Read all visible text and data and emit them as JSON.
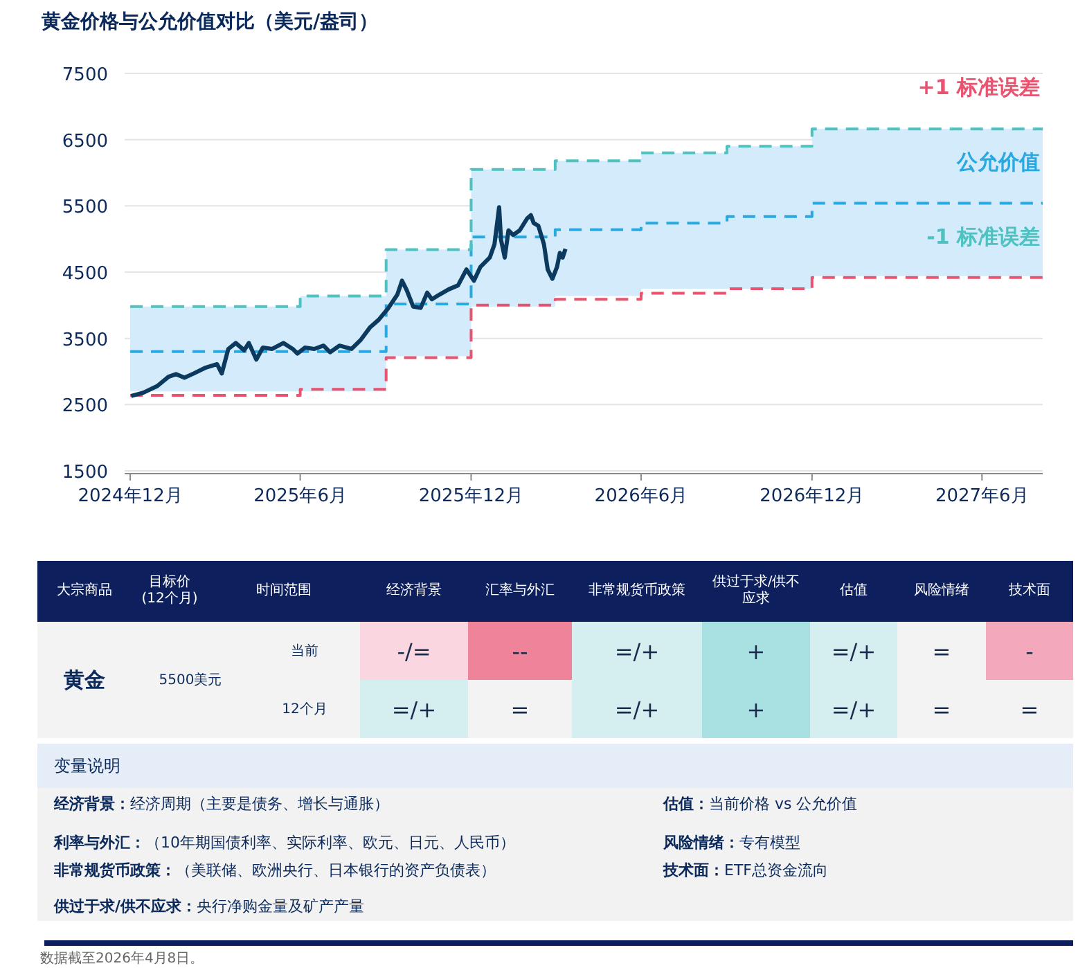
{
  "chart_data": [
    {
      "type": "line",
      "title": "黄金价格与公允价值对比（美元/盎司）",
      "xlim": [
        "2024-11-25",
        "2027-08-05"
      ],
      "ylim": [
        1500,
        7500
      ],
      "yticks": [
        1500,
        2500,
        3500,
        4500,
        5500,
        6500,
        7500
      ],
      "xticks": [
        {
          "value": "2024-12-01",
          "label": "2024年12月"
        },
        {
          "value": "2025-06-01",
          "label": "2025年6月"
        },
        {
          "value": "2025-12-01",
          "label": "2025年12月"
        },
        {
          "value": "2026-06-01",
          "label": "2026年6月"
        },
        {
          "value": "2026-12-01",
          "label": "2026年12月"
        },
        {
          "value": "2027-06-01",
          "label": "2027年6月"
        }
      ],
      "grid": "y",
      "marker": "none",
      "series": [
        {
          "type": "line",
          "color": "#0b3a5e",
          "line_style": "solid",
          "x": [
            "2024-12-02",
            "2024-12-15",
            "2024-12-30",
            "2025-01-11",
            "2025-01-19",
            "2025-01-28",
            "2025-02-07",
            "2025-02-20",
            "2025-03-04",
            "2025-03-09",
            "2025-03-16",
            "2025-03-24",
            "2025-04-02",
            "2025-04-07",
            "2025-04-15",
            "2025-04-22",
            "2025-05-02",
            "2025-05-14",
            "2025-05-24",
            "2025-05-29",
            "2025-06-06",
            "2025-06-16",
            "2025-06-26",
            "2025-07-03",
            "2025-07-13",
            "2025-07-26",
            "2025-08-05",
            "2025-08-15",
            "2025-08-24",
            "2025-09-03",
            "2025-09-13",
            "2025-09-18",
            "2025-09-23",
            "2025-09-30",
            "2025-10-08",
            "2025-10-15",
            "2025-10-20",
            "2025-10-28",
            "2025-11-07",
            "2025-11-17",
            "2025-11-26",
            "2025-12-04",
            "2025-12-11",
            "2025-12-21",
            "2025-12-26",
            "2025-12-31",
            "2026-01-02",
            "2026-01-06",
            "2026-01-10",
            "2026-01-15",
            "2026-01-22",
            "2026-01-30",
            "2026-02-03",
            "2026-02-06",
            "2026-02-11",
            "2026-02-17",
            "2026-02-21",
            "2026-02-26",
            "2026-03-03",
            "2026-03-06",
            "2026-03-09",
            "2026-03-12"
          ],
          "values": [
            2630,
            2680,
            2780,
            2920,
            2960,
            2905,
            2970,
            3060,
            3110,
            2970,
            3340,
            3430,
            3320,
            3430,
            3180,
            3360,
            3340,
            3430,
            3340,
            3270,
            3360,
            3340,
            3390,
            3290,
            3390,
            3340,
            3480,
            3670,
            3780,
            3950,
            4160,
            4370,
            4230,
            3980,
            3960,
            4190,
            4090,
            4160,
            4240,
            4300,
            4540,
            4370,
            4580,
            4720,
            4920,
            5480,
            4990,
            4720,
            5130,
            5060,
            5130,
            5310,
            5360,
            5240,
            5200,
            4920,
            4540,
            4400,
            4580,
            4790,
            4720,
            4850
          ]
        },
        {
          "type": "step",
          "name": "+1 标准误差",
          "color": "#e8536f",
          "line_style": "dashed",
          "x": [
            "2024-12-01",
            "2025-03-01",
            "2025-06-01",
            "2025-09-01",
            "2025-12-01",
            "2026-03-01",
            "2026-06-01",
            "2026-09-01",
            "2026-12-01",
            "2027-08-05"
          ],
          "values": [
            2640,
            2640,
            2730,
            3210,
            4000,
            4090,
            4180,
            4250,
            4420,
            4420
          ]
        },
        {
          "type": "step",
          "name": "公允价值",
          "color": "#29a9e0",
          "line_style": "dashed",
          "x": [
            "2024-12-01",
            "2025-03-01",
            "2025-06-01",
            "2025-09-01",
            "2025-12-01",
            "2026-03-01",
            "2026-06-01",
            "2026-09-01",
            "2026-12-01",
            "2027-08-05"
          ],
          "values": [
            3300,
            3300,
            3300,
            4020,
            5030,
            5140,
            5240,
            5340,
            5540,
            5540
          ],
          "lower": [
            2700,
            2700,
            2700,
            3230,
            3980,
            4140,
            4250,
            4250,
            4440,
            4440
          ],
          "upper": [
            3980,
            3980,
            4140,
            4840,
            6050,
            6180,
            6300,
            6400,
            6660,
            6660
          ]
        },
        {
          "type": "step",
          "name": "-1 标准误差",
          "color": "#4fc1c0",
          "line_style": "dashed",
          "x": [
            "2024-12-01",
            "2025-03-01",
            "2025-06-01",
            "2025-09-01",
            "2025-12-01",
            "2026-03-01",
            "2026-06-01",
            "2026-09-01",
            "2026-12-01",
            "2027-08-05"
          ],
          "values": [
            3980,
            3980,
            4140,
            4840,
            6050,
            6180,
            6300,
            6400,
            6660,
            6660
          ]
        }
      ]
    },
    {
      "type": "other",
      "categories": [
        "大宗商品",
        "目标价(12个月)",
        "时间范围",
        "经济背景",
        "汇率与外汇",
        "非常规货币政策",
        "供过于求/供不应求",
        "估值",
        "风险情绪",
        "技术面"
      ],
      "annotations": [
        "黄金",
        "5500美元",
        "当前",
        "12个月",
        "-/=",
        "--",
        "=/+",
        "+",
        "=/+",
        "=",
        "-",
        "=/+",
        "=",
        "=/+",
        "+",
        "=/+",
        "=",
        "="
      ]
    },
    {
      "type": "other",
      "title": "变量说明",
      "annotations": [
        "**经济背景：**经济周期（主要是债务、增长与通胀）",
        "**估值：**当前价格 vs 公允价值",
        "**利率与外汇：**（10年期国债利率、实际利率、欧元、日元、人民币）",
        "**风险情绪：**专有模型",
        "**非常规货币政策：**（美联储、欧洲央行、日本银行的资产负债表）",
        "**技术面：**ETF总资金流向",
        "**供过于求/供不应求：**央行净购金量及矿产产量",
        "数据截至2026年4月8日。"
      ]
    }
  ]
}
